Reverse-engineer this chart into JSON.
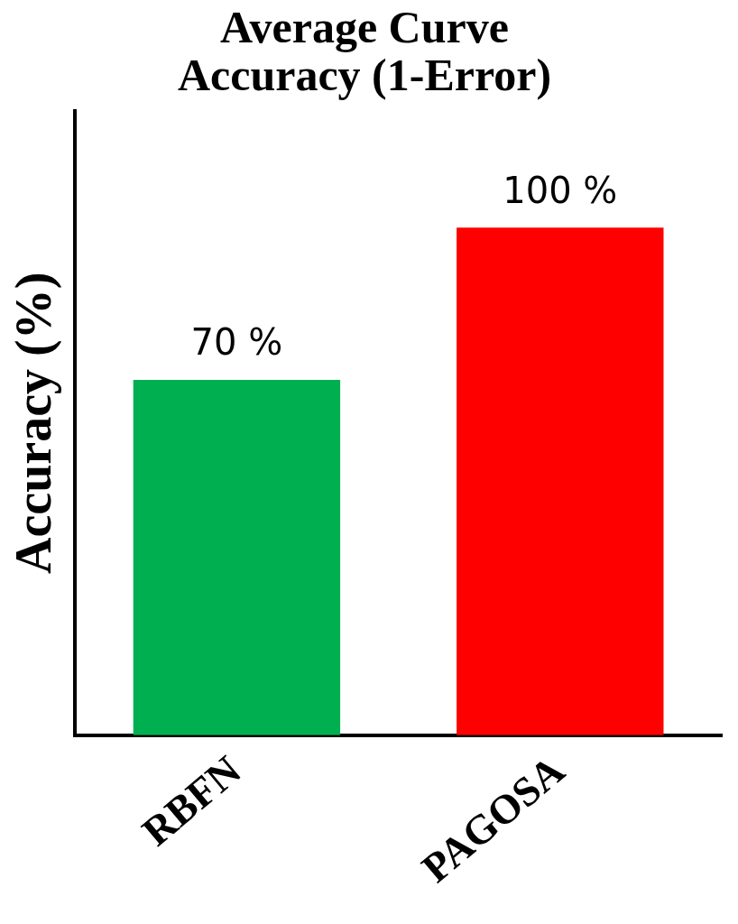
{
  "chart_data": {
    "type": "bar",
    "title": [
      "Average Curve",
      "Accuracy (1-Error)"
    ],
    "ylabel": "Accuracy (%)",
    "categories": [
      "RBFN",
      "PAGOSA"
    ],
    "values": [
      70,
      100
    ],
    "colors": [
      "#00b050",
      "#ff0000"
    ],
    "value_labels": [
      "70 %",
      "100 %"
    ],
    "ylim": [
      0,
      123
    ],
    "tick_labels": "x",
    "grid": false,
    "legend": false
  }
}
